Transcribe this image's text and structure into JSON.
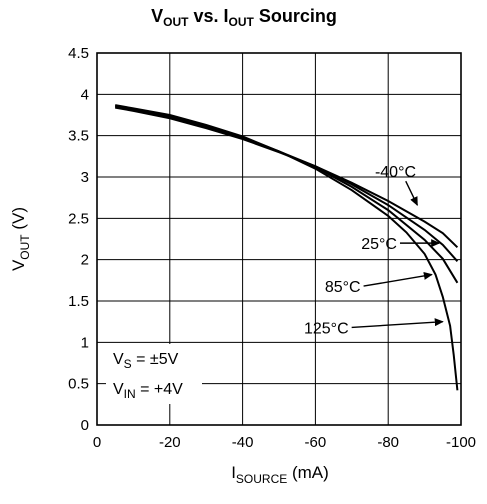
{
  "chart_data": {
    "type": "line",
    "title": {
      "main": "V",
      "main_sub": "OUT",
      "mid": " vs. I",
      "mid_sub": "OUT",
      "tail": " Sourcing"
    },
    "xlabel": {
      "main": "I",
      "sub": "SOURCE",
      "unit": " (mA)"
    },
    "ylabel": {
      "main": "V",
      "sub": "OUT",
      "unit": " (V)"
    },
    "xlim": [
      0,
      -100
    ],
    "ylim": [
      0,
      4.5
    ],
    "xticks": [
      0,
      -20,
      -40,
      -60,
      -80,
      -100
    ],
    "xtick_labels": [
      "0",
      "-20",
      "-40",
      "-60",
      "-80",
      "-100"
    ],
    "yticks": [
      0,
      0.5,
      1,
      1.5,
      2,
      2.5,
      3,
      3.5,
      4,
      4.5
    ],
    "ytick_labels": [
      "0",
      "0.5",
      "1",
      "1.5",
      "2",
      "2.5",
      "3",
      "3.5",
      "4",
      "4.5"
    ],
    "grid": true,
    "series": [
      {
        "name": "-40°C",
        "x": [
          -5,
          -10,
          -20,
          -30,
          -40,
          -50,
          -60,
          -70,
          -80,
          -90,
          -95,
          -99
        ],
        "y": [
          3.84,
          3.8,
          3.71,
          3.59,
          3.46,
          3.3,
          3.13,
          2.93,
          2.71,
          2.46,
          2.32,
          2.15
        ]
      },
      {
        "name": "25°C",
        "x": [
          -5,
          -10,
          -20,
          -30,
          -40,
          -50,
          -60,
          -70,
          -80,
          -90,
          -95,
          -99
        ],
        "y": [
          3.85,
          3.81,
          3.72,
          3.6,
          3.47,
          3.31,
          3.13,
          2.91,
          2.66,
          2.36,
          2.18,
          1.98
        ]
      },
      {
        "name": "85°C",
        "x": [
          -5,
          -10,
          -20,
          -30,
          -40,
          -50,
          -60,
          -70,
          -80,
          -90,
          -95,
          -99
        ],
        "y": [
          3.86,
          3.82,
          3.74,
          3.62,
          3.48,
          3.31,
          3.12,
          2.88,
          2.6,
          2.24,
          2.01,
          1.72
        ]
      },
      {
        "name": "125°C",
        "x": [
          -5,
          -10,
          -20,
          -30,
          -40,
          -50,
          -60,
          -70,
          -80,
          -85,
          -90,
          -93,
          -95,
          -97,
          -98,
          -99
        ],
        "y": [
          3.87,
          3.83,
          3.75,
          3.63,
          3.49,
          3.31,
          3.1,
          2.84,
          2.53,
          2.33,
          2.07,
          1.82,
          1.55,
          1.2,
          0.85,
          0.42
        ]
      }
    ],
    "annotations": [
      {
        "label": "-40°C",
        "text_at": [
          -82,
          3.07
        ],
        "arrow_to": [
          -88,
          2.66
        ]
      },
      {
        "label": "25°C",
        "text_at": [
          -77.5,
          2.2
        ],
        "arrow_to": [
          -94,
          2.2
        ]
      },
      {
        "label": "85°C",
        "text_at": [
          -67.5,
          1.68
        ],
        "arrow_to": [
          -92,
          1.82
        ]
      },
      {
        "label": "125°C",
        "text_at": [
          -63,
          1.18
        ],
        "arrow_to": [
          -95,
          1.25
        ]
      }
    ],
    "conditions": [
      {
        "main": "V",
        "sub": "S",
        "value": " = ±5V"
      },
      {
        "main": "V",
        "sub": "IN",
        "value": " = +4V"
      }
    ]
  }
}
